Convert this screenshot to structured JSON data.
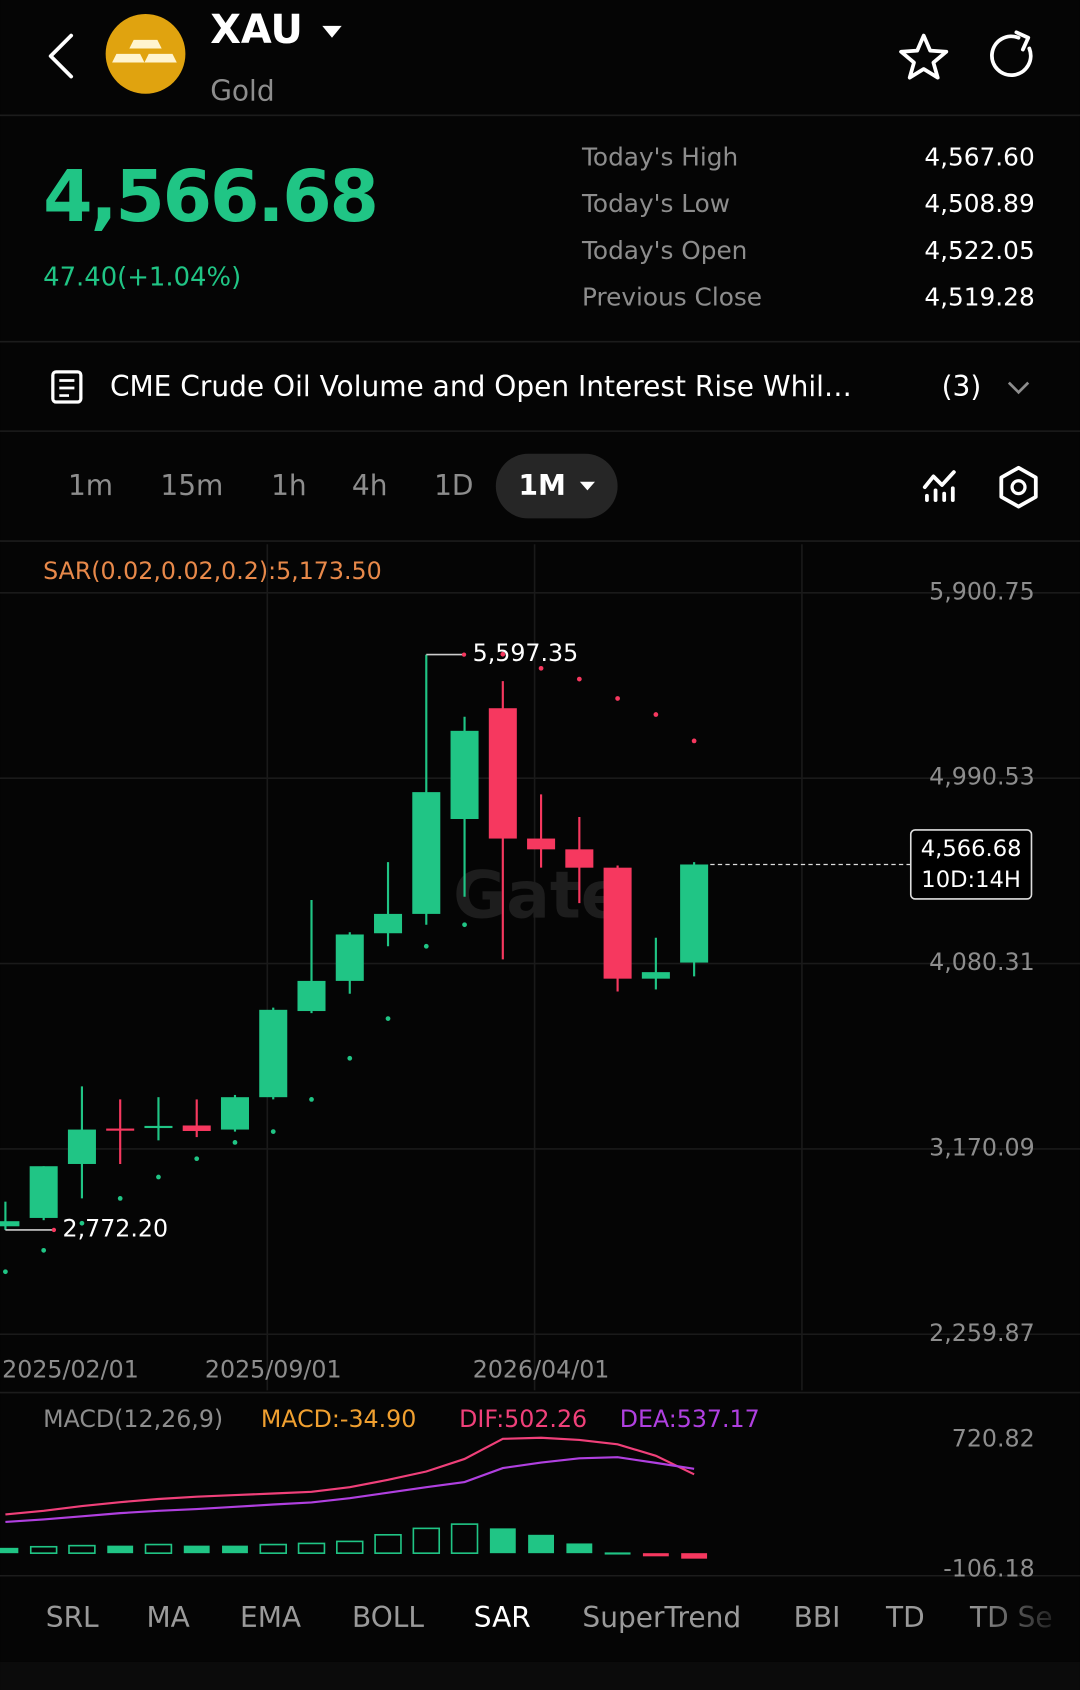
{
  "header": {
    "symbol": "XAU",
    "name": "Gold"
  },
  "quote": {
    "price": "4,566.68",
    "change": "47.40(+1.04%)",
    "stats": [
      {
        "label": "Today's High",
        "value": "4,567.60"
      },
      {
        "label": "Today's Low",
        "value": "4,508.89"
      },
      {
        "label": "Today's Open",
        "value": "4,522.05"
      },
      {
        "label": "Previous Close",
        "value": "4,519.28"
      }
    ]
  },
  "news": {
    "text": "CME Crude Oil Volume and Open Interest Rise Whil…",
    "count": "(3)"
  },
  "timeframes": [
    "1m",
    "15m",
    "1h",
    "4h",
    "1D",
    "1M"
  ],
  "watermark": "Gate",
  "chart_data": [
    {
      "type": "candlestick",
      "indicator_label": "SAR(0.02,0.02,0.2):5,173.50",
      "categories": [
        "2025/02/01",
        null,
        null,
        null,
        null,
        null,
        null,
        "2025/09/01",
        null,
        null,
        null,
        null,
        null,
        null,
        "2026/04/01",
        null,
        null,
        null,
        null
      ],
      "open": [
        2790,
        2831,
        3096,
        3270,
        3278,
        3285,
        3265,
        3424,
        3847,
        3995,
        4229,
        4324,
        4790,
        5334,
        4694,
        4641,
        4551,
        4006,
        4085
      ],
      "high": [
        2911,
        3085,
        3477,
        3413,
        3424,
        3413,
        3435,
        3864,
        4392,
        4234,
        4578,
        5597.35,
        5292,
        5467,
        4911,
        4800,
        4562,
        4207,
        4578
      ],
      "low": [
        2772.2,
        2820,
        2927,
        3096,
        3212,
        3228,
        3255,
        3413,
        3837,
        3932,
        4165,
        4271,
        4408,
        4101,
        4551,
        4377,
        3943,
        3953,
        4017
      ],
      "close": [
        2815,
        3085,
        3265,
        3260,
        3283,
        3258,
        3424,
        3853,
        3995,
        4223,
        4324,
        4922,
        5223,
        4694,
        4641,
        4551,
        4006,
        4038,
        4566.68
      ],
      "up_color": "#20c585",
      "down_color": "#f6385f",
      "sar": {
        "values": [
          2567,
          2672,
          2805,
          2927,
          3032,
          3122,
          3202,
          3255,
          3413,
          3615,
          3810,
          4165,
          4271,
          5599,
          5530,
          5477,
          5382,
          5303,
          5173.5
        ],
        "label_color": "#e8894a"
      },
      "annotations": [
        {
          "value": 5597.35,
          "label": "5,597.35"
        },
        {
          "value": 2772.2,
          "label": "2,772.20"
        }
      ],
      "current": {
        "value": 4566.68,
        "label": "4,566.68",
        "countdown": "10D:14H"
      },
      "ylim": [
        2196,
        6139
      ],
      "yticks": [
        {
          "value": 5900.75,
          "label": "5,900.75"
        },
        {
          "value": 4990.53,
          "label": "4,990.53"
        },
        {
          "value": 4080.31,
          "label": "4,080.31"
        },
        {
          "value": 3170.09,
          "label": "3,170.09"
        },
        {
          "value": 2259.87,
          "label": "2,259.87"
        }
      ],
      "grid": true
    },
    {
      "type": "macd",
      "title": "MACD(12,26,9)",
      "histogram": {
        "label": "MACD:-34.90",
        "label_color": "#f0a030",
        "values": [
          34,
          41,
          48,
          48,
          55,
          48,
          48,
          55,
          62,
          75,
          117,
          158,
          185,
          158,
          117,
          62,
          5,
          -20,
          -34.9
        ]
      },
      "dif": {
        "label": "DIF:502.26",
        "color": "#f0407a",
        "values": [
          247,
          270,
          300,
          325,
          345,
          360,
          370,
          380,
          391,
          420,
          467,
          520,
          600,
          728,
          735,
          721,
          693,
          620,
          502.26
        ]
      },
      "dea": {
        "label": "DEA:537.17",
        "color": "#b040e0",
        "values": [
          199,
          215,
          235,
          255,
          270,
          281,
          295,
          310,
          323,
          350,
          385,
          420,
          453,
          542,
          577,
          604,
          611,
          575,
          537.17
        ]
      },
      "ylim": [
        -130,
        968
      ],
      "yticks": [
        720.82,
        -106.18
      ]
    }
  ],
  "indicator_tabs": [
    "SRL",
    "MA",
    "EMA",
    "BOLL",
    "SAR",
    "SuperTrend",
    "BBI",
    "TD",
    "TD Se"
  ]
}
